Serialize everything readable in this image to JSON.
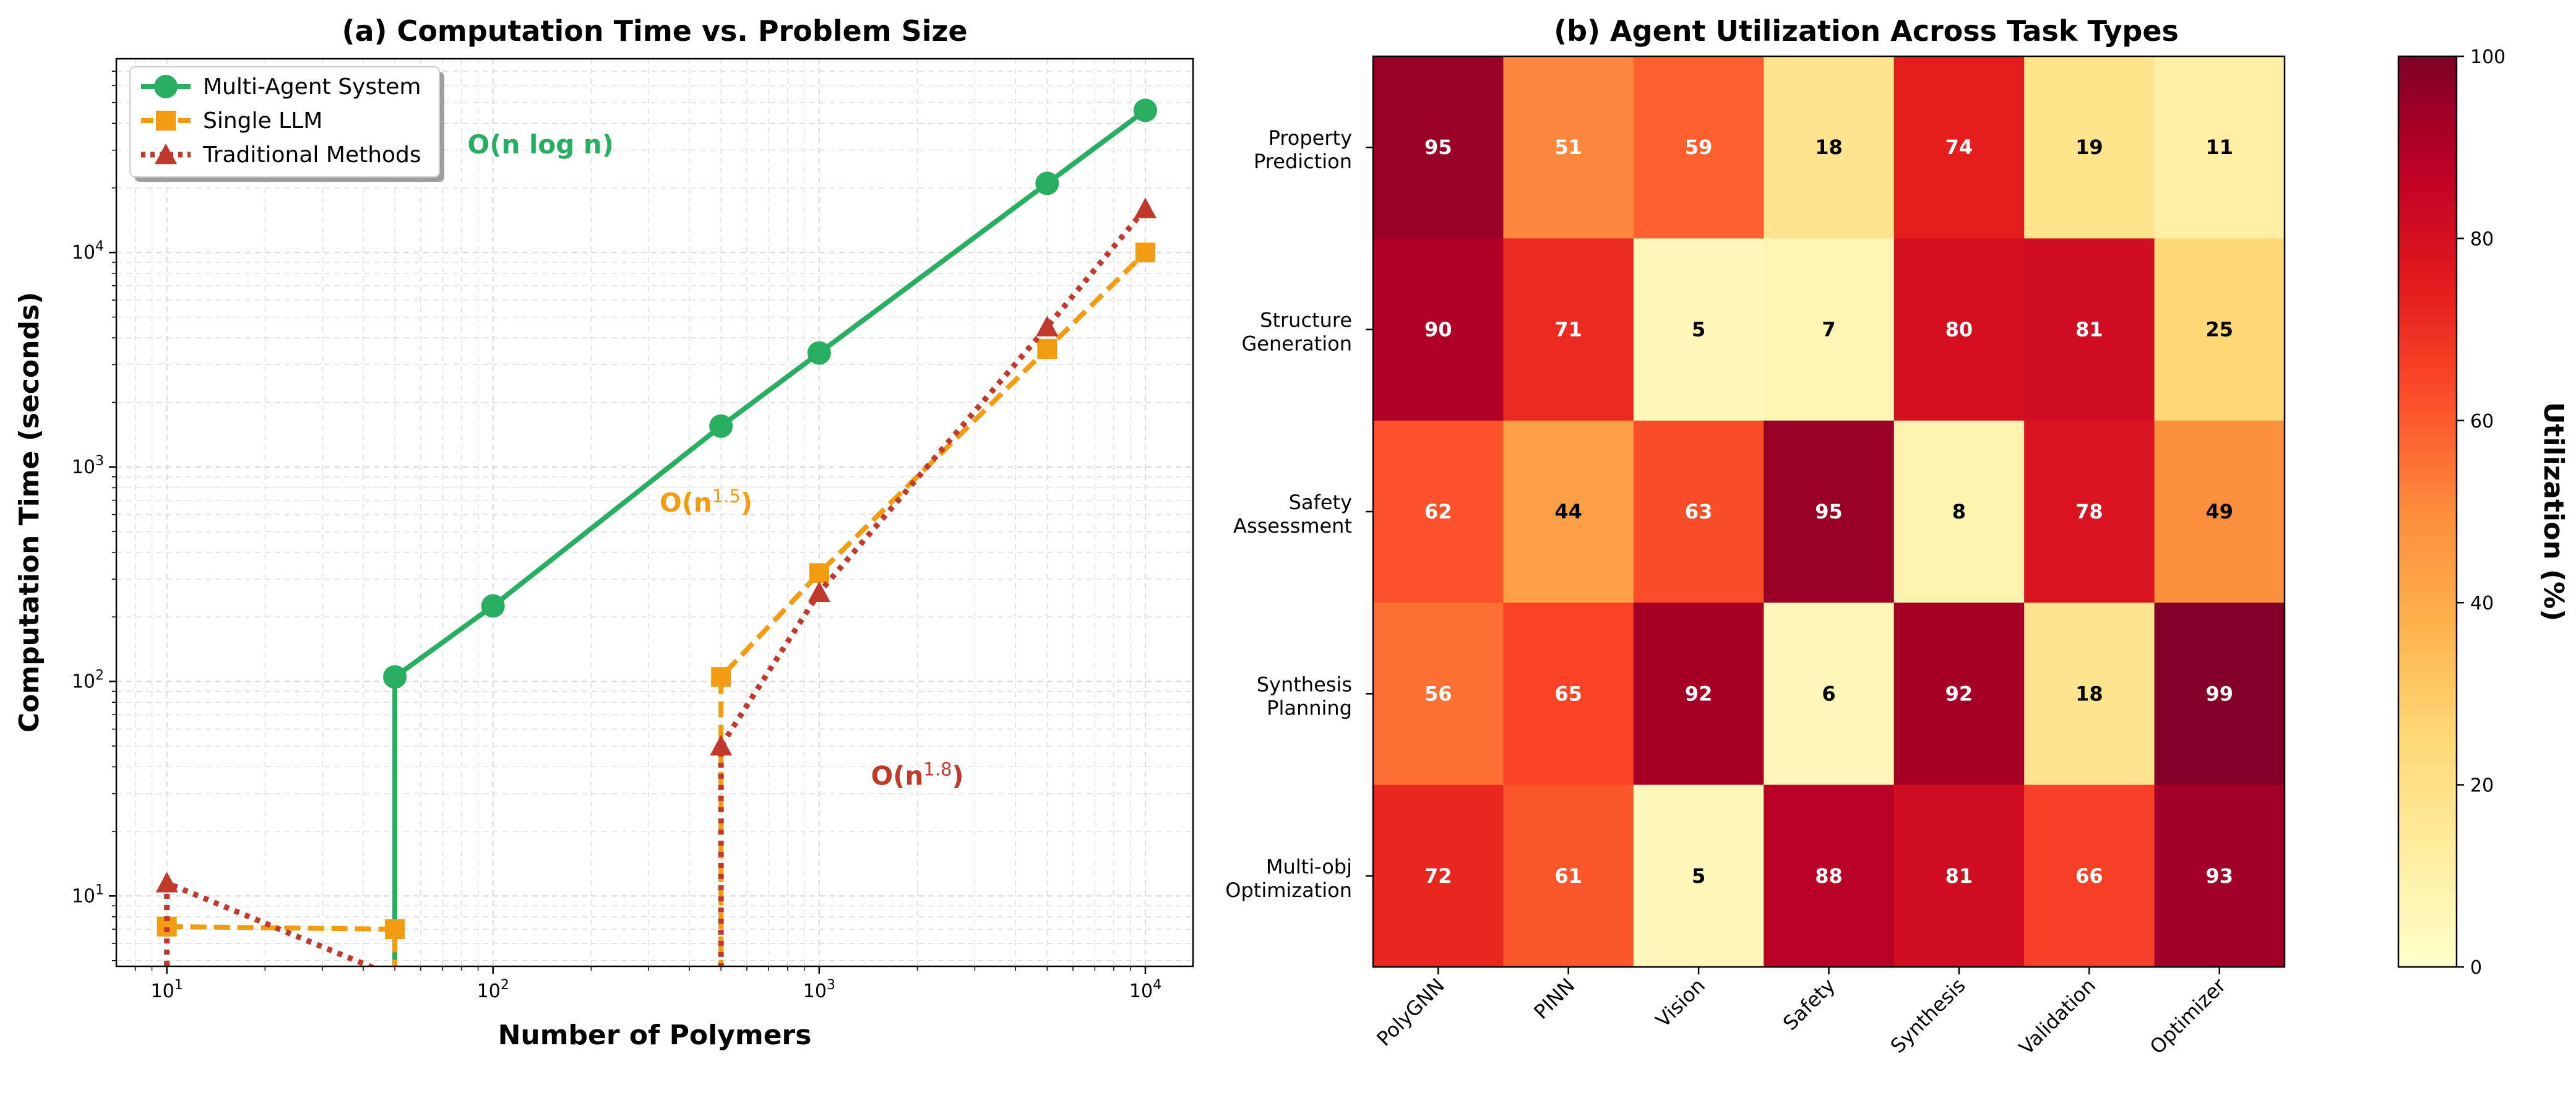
{
  "chart_data": [
    {
      "type": "line",
      "title": "(a) Computation Time vs. Problem Size",
      "xlabel": "Number of Polymers",
      "ylabel": "Computation Time (seconds)",
      "xscale": "log",
      "yscale": "log",
      "xlim": [
        7,
        14000
      ],
      "ylim": [
        4.7,
        80000
      ],
      "x_ticks": [
        "10^1",
        "10^2",
        "10^3",
        "10^4"
      ],
      "y_ticks": [
        "10^1",
        "10^2",
        "10^3",
        "10^4"
      ],
      "grid": true,
      "legend_position": "top-left",
      "series": [
        {
          "name": "Multi-Agent System",
          "color": "#27ae60",
          "style": "solid",
          "marker": "circle",
          "x": [
            50,
            50,
            100,
            500,
            1000,
            5000,
            10000
          ],
          "y": [
            1,
            105,
            225,
            1550,
            3400,
            21000,
            46000
          ]
        },
        {
          "name": "Single LLM",
          "color": "#f39c12",
          "style": "dashed",
          "marker": "square",
          "x": [
            10,
            50,
            50,
            500,
            500,
            1000,
            5000,
            10000
          ],
          "y": [
            7.2,
            7.0,
            1,
            1,
            105,
            320,
            3550,
            10000
          ]
        },
        {
          "name": "Traditional Methods",
          "color": "#c0392b",
          "style": "dotted",
          "marker": "triangle",
          "x": [
            10,
            10,
            500,
            500,
            1000,
            5000,
            10000
          ],
          "y": [
            1,
            11.5,
            1,
            50,
            260,
            4500,
            16000
          ]
        }
      ],
      "annotations": [
        {
          "text": "O(n log n)",
          "color": "#27ae60",
          "x": 140,
          "y": 29000
        },
        {
          "text": "O(n",
          "sup": "1.5",
          "text_after": ")",
          "color": "#f39c12",
          "x": 450,
          "y": 620
        },
        {
          "text": "O(n",
          "sup": "1.8",
          "text_after": ")",
          "color": "#c0392b",
          "x": 2000,
          "y": 33
        }
      ]
    },
    {
      "type": "heatmap",
      "title": "(b) Agent Utilization Across Task Types",
      "rows": [
        [
          "Property",
          "Prediction"
        ],
        [
          "Structure",
          "Generation"
        ],
        [
          "Safety",
          "Assessment"
        ],
        [
          "Synthesis",
          "Planning"
        ],
        [
          "Multi-obj",
          "Optimization"
        ]
      ],
      "columns": [
        "PolyGNN",
        "PINN",
        "Vision",
        "Safety",
        "Synthesis",
        "Validation",
        "Optimizer"
      ],
      "values": [
        [
          95,
          51,
          59,
          18,
          74,
          19,
          11
        ],
        [
          90,
          71,
          5,
          7,
          80,
          81,
          25
        ],
        [
          62,
          44,
          63,
          95,
          8,
          78,
          49
        ],
        [
          56,
          65,
          92,
          6,
          92,
          18,
          99
        ],
        [
          72,
          61,
          5,
          88,
          81,
          66,
          93
        ]
      ],
      "colormap": "YlOrRd",
      "vmin": 0,
      "vmax": 100,
      "colorbar_label": "Utilization (%)",
      "colorbar_ticks": [
        "0",
        "20",
        "40",
        "60",
        "80",
        "100"
      ]
    }
  ]
}
